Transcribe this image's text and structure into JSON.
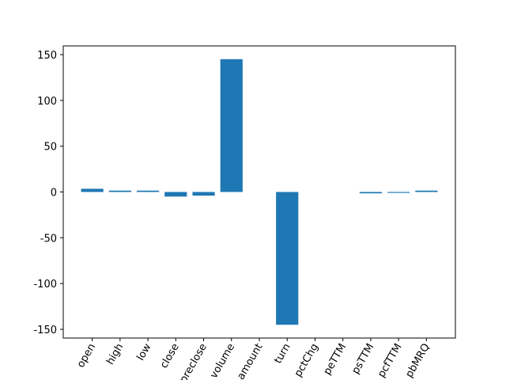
{
  "chart_data": {
    "type": "bar",
    "categories": [
      "open",
      "high",
      "low",
      "close",
      "preclose",
      "volume",
      "amount",
      "turn",
      "pctChg",
      "peTTM",
      "psTTM",
      "pcfTTM",
      "pbMRQ"
    ],
    "values": [
      3.5,
      1.5,
      1.5,
      -5,
      -4,
      145,
      0,
      -145,
      0,
      0,
      -1.5,
      -1,
      1.5
    ],
    "color": "#1f77b4",
    "ylim": [
      -159.5,
      159.5
    ],
    "yticks": [
      -150,
      -100,
      -50,
      0,
      50,
      100,
      150
    ],
    "xlim": [
      -1.04,
      13.04
    ],
    "grid": false
  }
}
